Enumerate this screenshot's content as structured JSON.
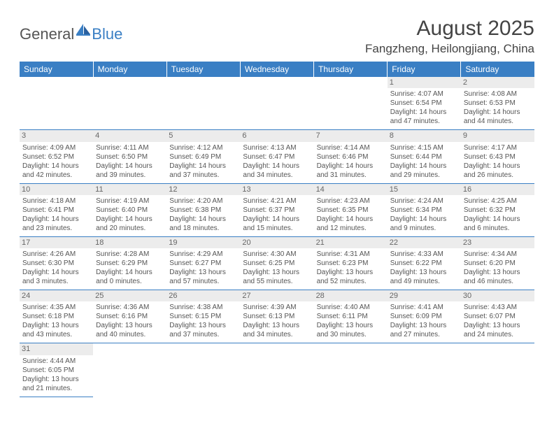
{
  "logo": {
    "general": "General",
    "blue": "Blue"
  },
  "title": "August 2025",
  "location": "Fangzheng, Heilongjiang, China",
  "colors": {
    "header_bg": "#3a7fc4",
    "header_text": "#ffffff",
    "daynum_bg": "#ececec",
    "text": "#555555",
    "rule": "#3a7fc4"
  },
  "typography": {
    "title_fontsize": 30,
    "location_fontsize": 17,
    "weekday_fontsize": 12,
    "cell_fontsize": 10
  },
  "weekdays": [
    "Sunday",
    "Monday",
    "Tuesday",
    "Wednesday",
    "Thursday",
    "Friday",
    "Saturday"
  ],
  "layout": {
    "week_start": "Sunday",
    "first_day_column_index": 5,
    "rows": 6,
    "cols": 7
  },
  "days": [
    {
      "n": 1,
      "sunrise": "4:07 AM",
      "sunset": "6:54 PM",
      "daylight": "14 hours and 47 minutes."
    },
    {
      "n": 2,
      "sunrise": "4:08 AM",
      "sunset": "6:53 PM",
      "daylight": "14 hours and 44 minutes."
    },
    {
      "n": 3,
      "sunrise": "4:09 AM",
      "sunset": "6:52 PM",
      "daylight": "14 hours and 42 minutes."
    },
    {
      "n": 4,
      "sunrise": "4:11 AM",
      "sunset": "6:50 PM",
      "daylight": "14 hours and 39 minutes."
    },
    {
      "n": 5,
      "sunrise": "4:12 AM",
      "sunset": "6:49 PM",
      "daylight": "14 hours and 37 minutes."
    },
    {
      "n": 6,
      "sunrise": "4:13 AM",
      "sunset": "6:47 PM",
      "daylight": "14 hours and 34 minutes."
    },
    {
      "n": 7,
      "sunrise": "4:14 AM",
      "sunset": "6:46 PM",
      "daylight": "14 hours and 31 minutes."
    },
    {
      "n": 8,
      "sunrise": "4:15 AM",
      "sunset": "6:44 PM",
      "daylight": "14 hours and 29 minutes."
    },
    {
      "n": 9,
      "sunrise": "4:17 AM",
      "sunset": "6:43 PM",
      "daylight": "14 hours and 26 minutes."
    },
    {
      "n": 10,
      "sunrise": "4:18 AM",
      "sunset": "6:41 PM",
      "daylight": "14 hours and 23 minutes."
    },
    {
      "n": 11,
      "sunrise": "4:19 AM",
      "sunset": "6:40 PM",
      "daylight": "14 hours and 20 minutes."
    },
    {
      "n": 12,
      "sunrise": "4:20 AM",
      "sunset": "6:38 PM",
      "daylight": "14 hours and 18 minutes."
    },
    {
      "n": 13,
      "sunrise": "4:21 AM",
      "sunset": "6:37 PM",
      "daylight": "14 hours and 15 minutes."
    },
    {
      "n": 14,
      "sunrise": "4:23 AM",
      "sunset": "6:35 PM",
      "daylight": "14 hours and 12 minutes."
    },
    {
      "n": 15,
      "sunrise": "4:24 AM",
      "sunset": "6:34 PM",
      "daylight": "14 hours and 9 minutes."
    },
    {
      "n": 16,
      "sunrise": "4:25 AM",
      "sunset": "6:32 PM",
      "daylight": "14 hours and 6 minutes."
    },
    {
      "n": 17,
      "sunrise": "4:26 AM",
      "sunset": "6:30 PM",
      "daylight": "14 hours and 3 minutes."
    },
    {
      "n": 18,
      "sunrise": "4:28 AM",
      "sunset": "6:29 PM",
      "daylight": "14 hours and 0 minutes."
    },
    {
      "n": 19,
      "sunrise": "4:29 AM",
      "sunset": "6:27 PM",
      "daylight": "13 hours and 57 minutes."
    },
    {
      "n": 20,
      "sunrise": "4:30 AM",
      "sunset": "6:25 PM",
      "daylight": "13 hours and 55 minutes."
    },
    {
      "n": 21,
      "sunrise": "4:31 AM",
      "sunset": "6:23 PM",
      "daylight": "13 hours and 52 minutes."
    },
    {
      "n": 22,
      "sunrise": "4:33 AM",
      "sunset": "6:22 PM",
      "daylight": "13 hours and 49 minutes."
    },
    {
      "n": 23,
      "sunrise": "4:34 AM",
      "sunset": "6:20 PM",
      "daylight": "13 hours and 46 minutes."
    },
    {
      "n": 24,
      "sunrise": "4:35 AM",
      "sunset": "6:18 PM",
      "daylight": "13 hours and 43 minutes."
    },
    {
      "n": 25,
      "sunrise": "4:36 AM",
      "sunset": "6:16 PM",
      "daylight": "13 hours and 40 minutes."
    },
    {
      "n": 26,
      "sunrise": "4:38 AM",
      "sunset": "6:15 PM",
      "daylight": "13 hours and 37 minutes."
    },
    {
      "n": 27,
      "sunrise": "4:39 AM",
      "sunset": "6:13 PM",
      "daylight": "13 hours and 34 minutes."
    },
    {
      "n": 28,
      "sunrise": "4:40 AM",
      "sunset": "6:11 PM",
      "daylight": "13 hours and 30 minutes."
    },
    {
      "n": 29,
      "sunrise": "4:41 AM",
      "sunset": "6:09 PM",
      "daylight": "13 hours and 27 minutes."
    },
    {
      "n": 30,
      "sunrise": "4:43 AM",
      "sunset": "6:07 PM",
      "daylight": "13 hours and 24 minutes."
    },
    {
      "n": 31,
      "sunrise": "4:44 AM",
      "sunset": "6:05 PM",
      "daylight": "13 hours and 21 minutes."
    }
  ],
  "labels": {
    "sunrise_prefix": "Sunrise: ",
    "sunset_prefix": "Sunset: ",
    "daylight_prefix": "Daylight: "
  }
}
